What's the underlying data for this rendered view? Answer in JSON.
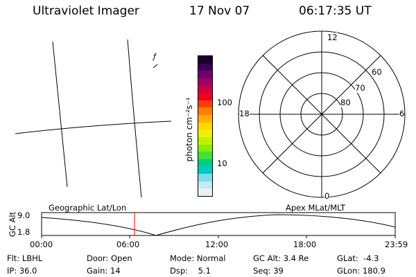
{
  "header": {
    "instrument": "Ultraviolet Imager",
    "date": "17 Nov 07",
    "time": "06:17:35 UT"
  },
  "map": {
    "fragment_glyph": "ƒ"
  },
  "colorbar": {
    "unit_label": "photon cm⁻²s⁻¹",
    "ticks": [
      "100",
      "10"
    ],
    "colors": [
      "#1a0030",
      "#3a0058",
      "#700070",
      "#a00068",
      "#d00040",
      "#f00020",
      "#ff4000",
      "#ff8000",
      "#ffb000",
      "#ffd800",
      "#f0f000",
      "#c0f000",
      "#80f000",
      "#40e040",
      "#00d080",
      "#00c8c8",
      "#80dce8",
      "#c8e8f0",
      "#e8f0f4"
    ]
  },
  "polar": {
    "mlt_labels": {
      "top": "12",
      "left": "18",
      "right": "6",
      "bottom": "0"
    },
    "lat_labels": [
      "60",
      "70",
      "80"
    ]
  },
  "timeline": {
    "left_label": "Geographic Lat/Lon",
    "right_label": "Apex MLat/MLT",
    "axis_title": "GC Alt",
    "y_ticks": [
      "9.0",
      "1.8"
    ],
    "x_ticks": [
      "00:00",
      "06:00",
      "12:00",
      "18:00",
      "23:59"
    ]
  },
  "footer": {
    "row1": [
      {
        "key": "Flt:",
        "val": "LBHL"
      },
      {
        "key": "Door:",
        "val": "Open"
      },
      {
        "key": "Mode:",
        "val": "Normal"
      },
      {
        "key": "GC Alt:",
        "val": "3.4 Re"
      },
      {
        "key": "GLat:",
        "val": "-4.3"
      }
    ],
    "row2": [
      {
        "key": "IP:",
        "val": "36.0"
      },
      {
        "key": "Gain:",
        "val": "14"
      },
      {
        "key": "Dsp:",
        "val": "5.1"
      },
      {
        "key": "Seq:",
        "val": "39"
      },
      {
        "key": "GLon:",
        "val": "180.9"
      }
    ]
  }
}
